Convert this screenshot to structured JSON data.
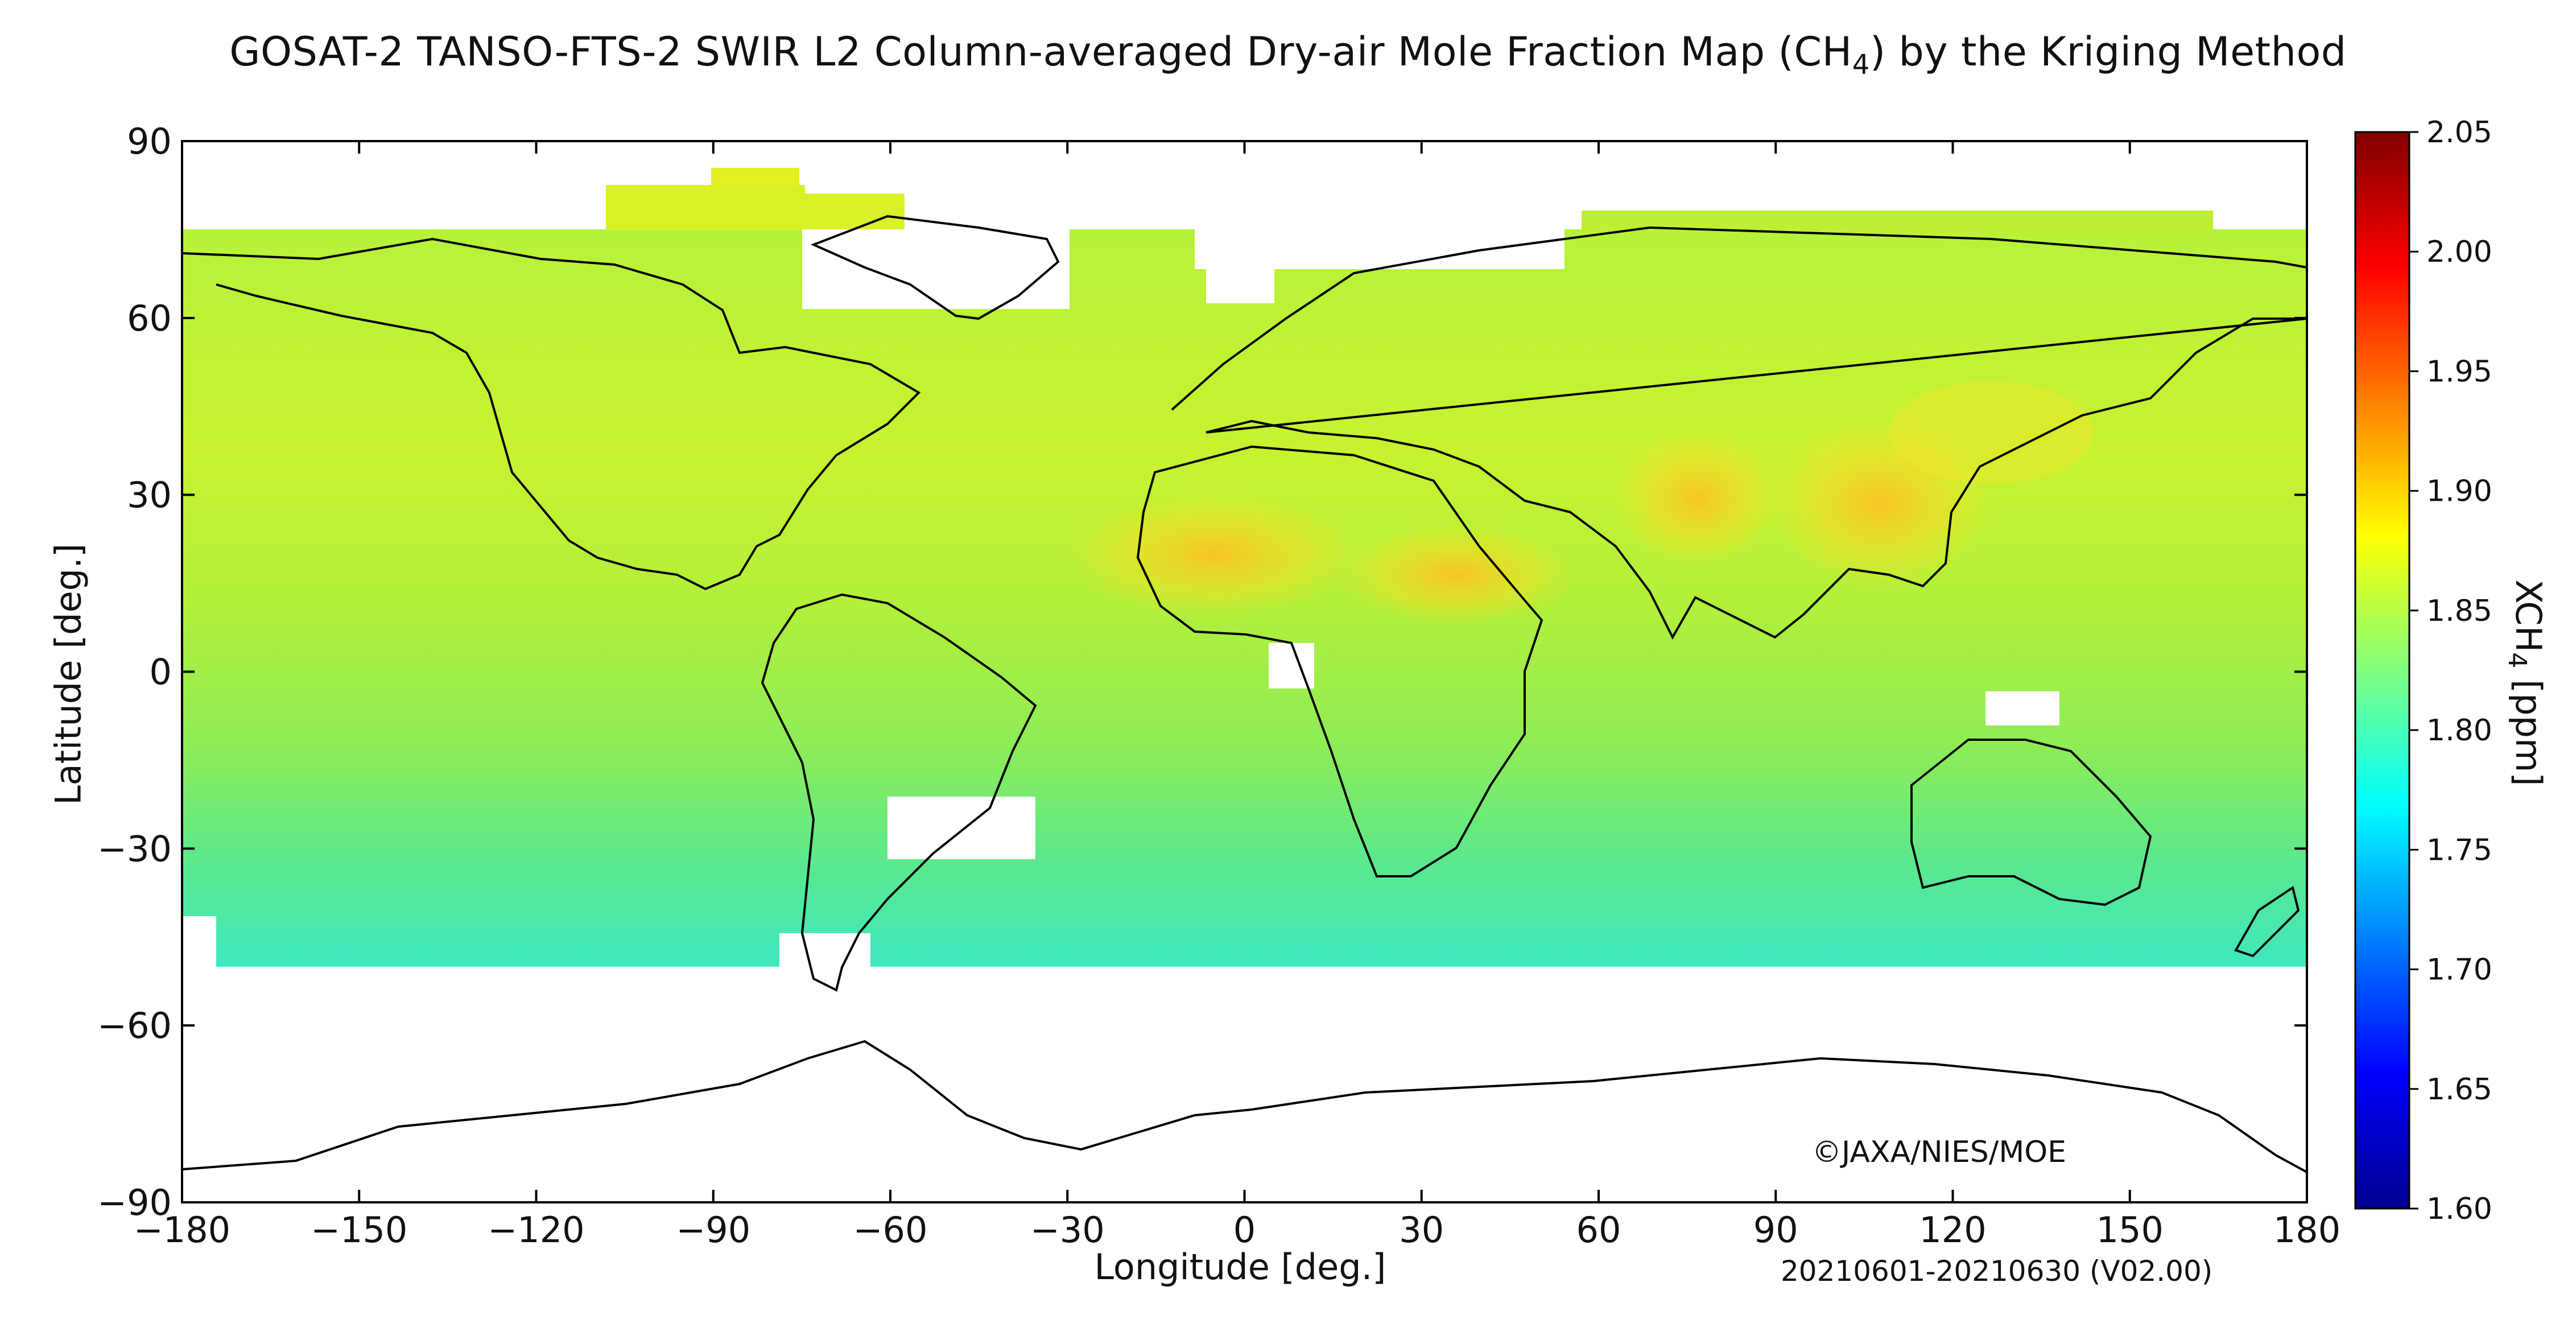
{
  "title": {
    "main": "GOSAT-2 TANSO-FTS-2 SWIR L2 Column-averaged Dry-air Mole Fraction Map (CH",
    "sub": "4",
    "tail": ") by the Kriging Method"
  },
  "axes": {
    "xlabel": "Longitude [deg.]",
    "ylabel": "Latitude [deg.]",
    "x_ticks": [
      "−180",
      "−150",
      "−120",
      "−90",
      "−60",
      "−30",
      "0",
      "30",
      "60",
      "90",
      "120",
      "150",
      "180"
    ],
    "y_ticks": [
      "90",
      "60",
      "30",
      "0",
      "−30",
      "−60",
      "−90"
    ],
    "xlim": [
      -180,
      180
    ],
    "ylim": [
      -90,
      90
    ]
  },
  "colorbar": {
    "label_main": "XCH",
    "label_sub": "4",
    "label_tail": " [ppm]",
    "ticks": [
      "2.05",
      "2.00",
      "1.95",
      "1.90",
      "1.85",
      "1.80",
      "1.75",
      "1.70",
      "1.65",
      "1.60"
    ],
    "range": [
      1.6,
      2.05
    ],
    "colormap": "jet"
  },
  "credit": "©JAXA/NIES/MOE",
  "period": "20210601-20210630 (V02.00)",
  "chart_data": {
    "type": "heatmap",
    "variable": "XCH4",
    "unit": "ppm",
    "data_lat_range": [
      -50,
      75
    ],
    "hotspots": [
      {
        "region": "eastern China",
        "lat": 29,
        "lon": 112,
        "value": 1.93
      },
      {
        "region": "northern India",
        "lat": 30,
        "lon": 77,
        "value": 1.92
      },
      {
        "region": "western Sahara",
        "lat": 20,
        "lon": -7,
        "value": 1.91
      },
      {
        "region": "Arabia",
        "lat": 17,
        "lon": 38,
        "value": 1.9
      }
    ],
    "gradient": [
      {
        "lat": 65,
        "value": 1.87
      },
      {
        "lat": 45,
        "value": 1.88
      },
      {
        "lat": 25,
        "value": 1.885
      },
      {
        "lat": 0,
        "value": 1.855
      },
      {
        "lat": -20,
        "value": 1.835
      },
      {
        "lat": -35,
        "value": 1.815
      },
      {
        "lat": -48,
        "value": 1.795
      }
    ]
  }
}
